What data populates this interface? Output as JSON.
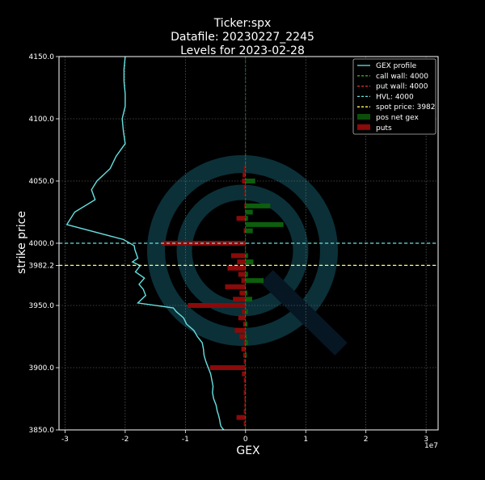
{
  "chart_data": {
    "type": "bar",
    "title_lines": [
      "Ticker:spx",
      "Datafile: 20230227_2245",
      "Levels for 2023-02-28"
    ],
    "xlabel": "GEX",
    "ylabel": "strike price",
    "x_multiplier_label": "1e7",
    "xlim": [
      -31000000,
      32000000
    ],
    "ylim": [
      3850,
      4150
    ],
    "xticks": [
      -3,
      -2,
      -1,
      0,
      1,
      2,
      3
    ],
    "yticks": [
      3850,
      3900,
      3950,
      3982.2,
      4000,
      4050,
      4100,
      4150
    ],
    "ytick_labels": [
      "3850.0",
      "3900.0",
      "3950.0",
      "3982.2",
      "4000.0",
      "4050.0",
      "4100.0",
      "4150.0"
    ],
    "grid": true,
    "legend_position": "top-right",
    "legend": [
      {
        "label": "GEX profile",
        "kind": "line",
        "color": "#66e0e0"
      },
      {
        "label": "call wall: 4000",
        "kind": "dash",
        "color": "#33aa33"
      },
      {
        "label": "put wall: 4000",
        "kind": "dash",
        "color": "#dd3333"
      },
      {
        "label": "HVL: 4000",
        "kind": "dash",
        "color": "#66e0e0"
      },
      {
        "label": "spot price: 3982",
        "kind": "dash",
        "color": "#ffff66"
      },
      {
        "label": "pos net gex",
        "kind": "patch",
        "color": "#0b4d0b"
      },
      {
        "label": "puts",
        "kind": "patch",
        "color": "#8b0a0a"
      }
    ],
    "hlines": [
      {
        "y": 4000,
        "color": "#66e0e0"
      },
      {
        "y": 3982.2,
        "color": "#ffff66"
      }
    ],
    "colors": {
      "call": "#0d5e0d",
      "put": "#8b0a0a",
      "profile": "#66e0e0",
      "grid": "#777777"
    },
    "series": [
      {
        "name": "pos net gex",
        "strikes": [
          4050,
          4030,
          4025,
          4020,
          4015,
          4010,
          3990,
          3985,
          3975,
          3970,
          3960,
          3955,
          3945,
          3935,
          3925,
          3920,
          3910
        ],
        "values": [
          1600000,
          4100000,
          1200000,
          400000,
          6300000,
          1200000,
          400000,
          1300000,
          400000,
          3000000,
          300000,
          1100000,
          400000,
          300000,
          200000,
          400000,
          200000
        ]
      },
      {
        "name": "puts",
        "strikes": [
          4060,
          4055,
          4050,
          4045,
          4040,
          4030,
          4020,
          4010,
          4000,
          3990,
          3985,
          3980,
          3975,
          3970,
          3965,
          3960,
          3955,
          3950,
          3945,
          3940,
          3935,
          3930,
          3925,
          3920,
          3915,
          3910,
          3905,
          3900,
          3895,
          3890,
          3885,
          3880,
          3875,
          3870,
          3865,
          3860,
          3855
        ],
        "values": [
          -300000,
          -500000,
          -600000,
          -300000,
          -200000,
          -200000,
          -1500000,
          -300000,
          -13900000,
          -2400000,
          -1400000,
          -3000000,
          -1200000,
          -700000,
          -3400000,
          -1000000,
          -2100000,
          -9600000,
          -600000,
          -1200000,
          -400000,
          -1800000,
          -1000000,
          -300000,
          -700000,
          -400000,
          -300000,
          -5900000,
          -600000,
          -300000,
          -200000,
          -300000,
          -200000,
          -200000,
          -300000,
          -1500000,
          -300000
        ]
      },
      {
        "name": "GEX profile",
        "kind": "line",
        "x": [
          -20000000,
          -20200000,
          -20200000,
          -20000000,
          -20000000,
          -20500000,
          -20300000,
          -20000000,
          -21500000,
          -22500000,
          -24700000,
          -25600000,
          -25000000,
          -28400000,
          -29700000,
          -20300000,
          -18500000,
          -18400000,
          -17900000,
          -18800000,
          -17500000,
          -18300000,
          -16800000,
          -17700000,
          -17000000,
          -16600000,
          -17900000,
          -12000000,
          -11500000,
          -10300000,
          -9800000,
          -8600000,
          -8000000,
          -7200000,
          -7000000,
          -6900000,
          -6600000,
          -6200000,
          -5800000,
          -5600000,
          -5400000,
          -5500000,
          -5300000,
          -4900000,
          -4700000,
          -4500000,
          -4300000,
          -4200000,
          -4100000,
          -3800000,
          -3600000
        ],
        "y": [
          4150,
          4140,
          4130,
          4120,
          4110,
          4100,
          4090,
          4080,
          4070,
          4060,
          4050,
          4043,
          4035,
          4025,
          4015,
          4003,
          3998,
          3995,
          3988,
          3985,
          3982,
          3977,
          3972,
          3967,
          3963,
          3958,
          3952,
          3948,
          3945,
          3940,
          3935,
          3930,
          3925,
          3920,
          3915,
          3910,
          3905,
          3900,
          3895,
          3890,
          3885,
          3880,
          3875,
          3870,
          3865,
          3862,
          3858,
          3855,
          3853,
          3851,
          3850
        ]
      }
    ]
  }
}
